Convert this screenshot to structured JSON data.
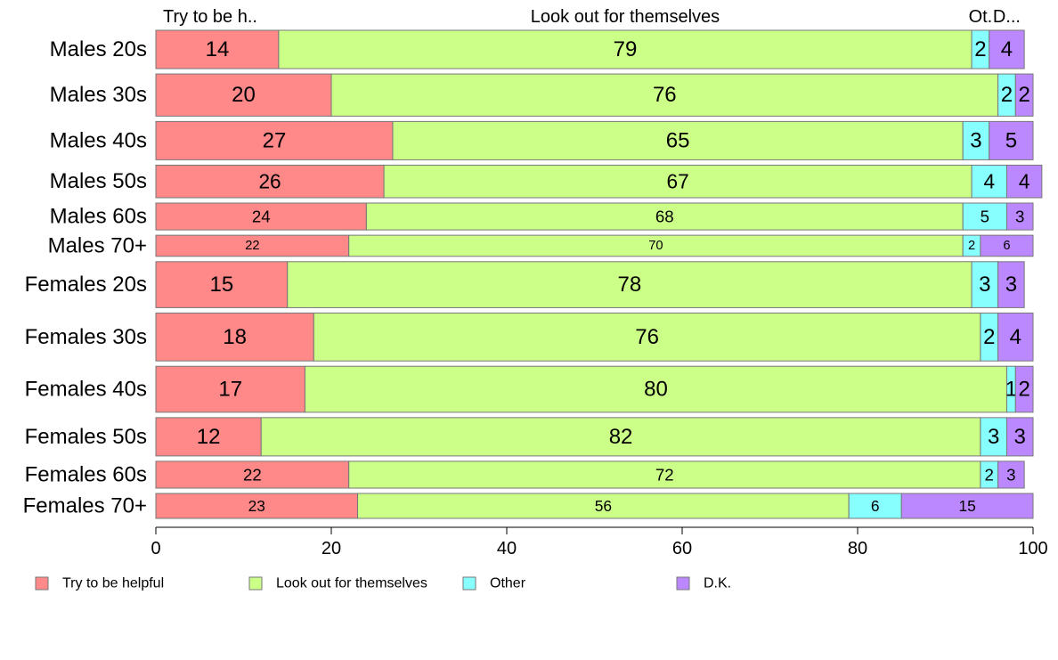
{
  "chart_data": {
    "type": "bar",
    "orientation": "horizontal",
    "stacked": true,
    "categories": [
      "Males 20s",
      "Males 30s",
      "Males 40s",
      "Males 50s",
      "Males 60s",
      "Males 70+",
      "Females 20s",
      "Females 30s",
      "Females 40s",
      "Females 50s",
      "Females 60s",
      "Females 70+"
    ],
    "series": [
      {
        "name": "Try to be helpful",
        "color": "#ff8888",
        "values": [
          14,
          20,
          27,
          26,
          24,
          22,
          15,
          18,
          17,
          12,
          22,
          23
        ]
      },
      {
        "name": "Look out for themselves",
        "color": "#ccff88",
        "values": [
          79,
          76,
          65,
          67,
          68,
          70,
          78,
          76,
          80,
          82,
          72,
          56
        ]
      },
      {
        "name": "Other",
        "color": "#88ffff",
        "values": [
          2,
          2,
          3,
          4,
          5,
          2,
          3,
          2,
          1,
          3,
          2,
          6
        ]
      },
      {
        "name": "D.K.",
        "color": "#bb88ff",
        "values": [
          4,
          2,
          5,
          4,
          3,
          6,
          3,
          4,
          2,
          3,
          3,
          15
        ]
      }
    ],
    "top_labels": [
      "Try to be h..",
      "Look out for themselves",
      "Ot.",
      "D..."
    ],
    "xlim": [
      0,
      100
    ],
    "x_ticks": [
      0,
      20,
      40,
      60,
      80,
      100
    ],
    "bar_weights": [
      1.0,
      1.1,
      1.0,
      0.85,
      0.7,
      0.55,
      1.2,
      1.25,
      1.2,
      1.0,
      0.7,
      0.65
    ],
    "title": "",
    "xlabel": "",
    "ylabel": "",
    "grid": false,
    "legend_position": "bottom"
  }
}
